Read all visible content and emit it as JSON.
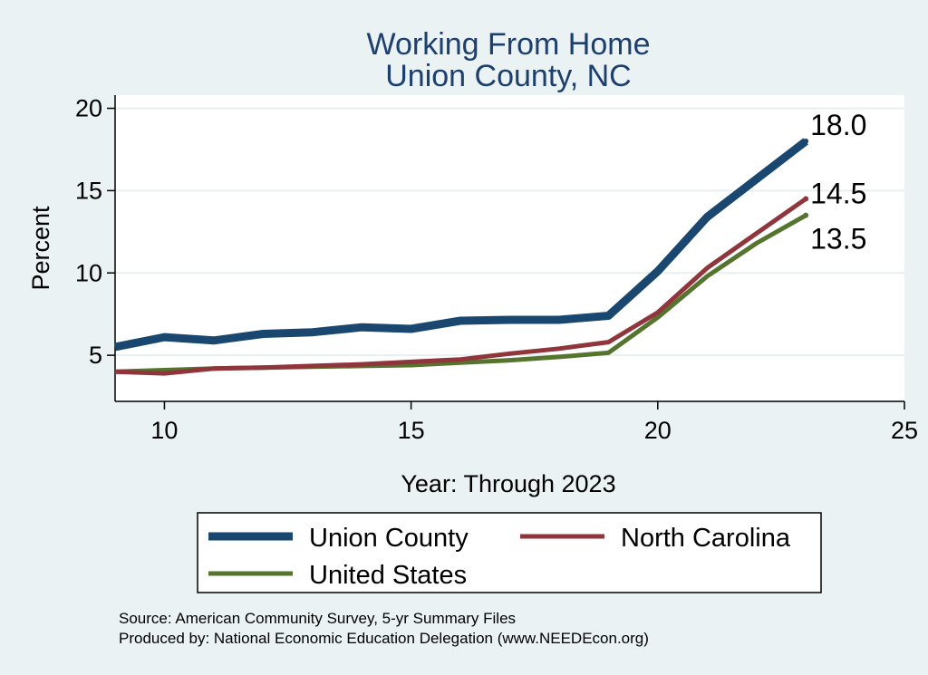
{
  "chart_data": {
    "type": "line",
    "title": "Working From Home",
    "subtitle": "Union County, NC",
    "xlabel": "Year: Through 2023",
    "ylabel": "Percent",
    "xlim": [
      9,
      25
    ],
    "ylim": [
      2.2,
      20.8
    ],
    "xticks": [
      10,
      15,
      20,
      25
    ],
    "yticks": [
      5,
      10,
      15,
      20
    ],
    "grid": "horizontal",
    "x": [
      9,
      10,
      11,
      12,
      13,
      14,
      15,
      16,
      17,
      18,
      19,
      20,
      21,
      22,
      23
    ],
    "series": [
      {
        "name": "Union County",
        "color": "#1a476f",
        "values": [
          5.5,
          6.1,
          5.9,
          6.3,
          6.4,
          6.7,
          6.6,
          7.1,
          7.15,
          7.15,
          7.4,
          10.1,
          13.4,
          15.7,
          18.0
        ],
        "end_label": "18.0"
      },
      {
        "name": "North Carolina",
        "color": "#90353b",
        "values": [
          4.0,
          3.9,
          4.2,
          4.25,
          4.35,
          4.45,
          4.6,
          4.75,
          5.1,
          5.4,
          5.8,
          7.6,
          10.3,
          12.4,
          14.5
        ],
        "end_label": "14.5"
      },
      {
        "name": "United States",
        "color": "#55752f",
        "values": [
          4.0,
          4.1,
          4.2,
          4.25,
          4.3,
          4.35,
          4.4,
          4.55,
          4.7,
          4.9,
          5.15,
          7.3,
          9.8,
          11.8,
          13.5
        ],
        "end_label": "13.5"
      }
    ],
    "legend_position": "bottom",
    "legend": [
      "Union County",
      "North Carolina",
      "United States"
    ]
  },
  "footer": {
    "source": "Source: American Community Survey, 5-yr Summary Files",
    "produced": "Produced by: National Economic Education Delegation (www.NEEDEcon.org)"
  }
}
